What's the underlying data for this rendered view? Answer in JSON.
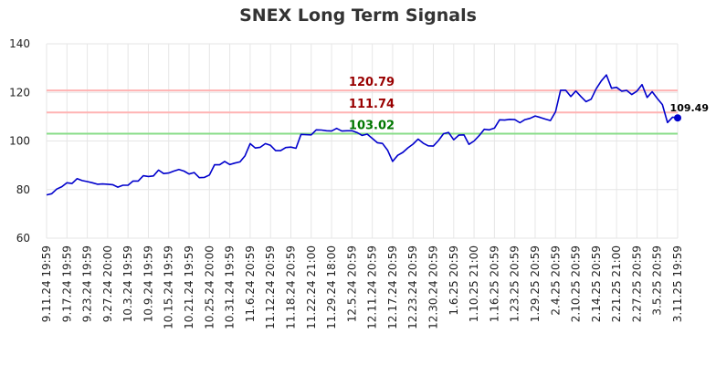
{
  "chart_data": {
    "type": "line",
    "title": "SNEX Long Term Signals",
    "xlabel": "",
    "ylabel": "",
    "ylim": [
      60,
      140
    ],
    "yticks": [
      60,
      80,
      100,
      120,
      140
    ],
    "grid": true,
    "x_tick_labels": [
      "9.11.24 19:59",
      "9.17.24 19:59",
      "9.23.24 19:59",
      "9.27.24 20:00",
      "10.3.24 19:59",
      "10.9.24 19:59",
      "10.15.24 19:59",
      "10.21.24 19:59",
      "10.25.24 20:00",
      "10.31.24 19:59",
      "11.6.24 20:59",
      "11.12.24 20:59",
      "11.18.24 20:59",
      "11.22.24 21:00",
      "11.29.24 18:00",
      "12.5.24 20:59",
      "12.11.24 20:59",
      "12.17.24 20:59",
      "12.23.24 20:59",
      "12.30.24 20:59",
      "1.6.25 20:59",
      "1.10.25 21:00",
      "1.16.25 20:59",
      "1.23.25 20:59",
      "1.29.25 20:59",
      "2.4.25 20:59",
      "2.10.25 20:59",
      "2.14.25 20:59",
      "2.21.25 21:00",
      "2.27.25 20:59",
      "3.5.25 20:59",
      "3.11.25 19:59"
    ],
    "series": [
      {
        "color": "#0000cc",
        "values": [
          77.8,
          78.3,
          80.2,
          81.2,
          82.8,
          82.5,
          84.5,
          83.7,
          83.3,
          82.8,
          82.2,
          82.3,
          82.2,
          82.0,
          81.0,
          81.8,
          81.8,
          83.5,
          83.5,
          85.7,
          85.4,
          85.6,
          88.0,
          86.6,
          86.8,
          87.6,
          88.3,
          87.6,
          86.4,
          87.0,
          84.9,
          85.0,
          86.0,
          90.2,
          90.2,
          91.6,
          90.3,
          90.9,
          91.4,
          93.9,
          98.9,
          97.1,
          97.4,
          98.9,
          98.2,
          96.0,
          96.0,
          97.3,
          97.5,
          97.0,
          102.7,
          102.6,
          102.5,
          104.6,
          104.5,
          104.2,
          104.1,
          105.2,
          104.1,
          104.2,
          104.2,
          103.5,
          102.3,
          102.8,
          101.1,
          99.3,
          99.0,
          96.2,
          91.6,
          94.1,
          95.3,
          97.2,
          98.7,
          100.8,
          99.1,
          98.0,
          97.9,
          100.2,
          103.0,
          103.5,
          100.5,
          102.4,
          102.5,
          98.6,
          100.0,
          102.2,
          104.8,
          104.6,
          105.3,
          108.7,
          108.6,
          108.9,
          108.8,
          107.5,
          108.8,
          109.3,
          110.3,
          109.7,
          109.0,
          108.4,
          112.0,
          120.9,
          120.9,
          118.3,
          120.6,
          118.3,
          116.2,
          117.2,
          121.5,
          124.7,
          127.2,
          121.7,
          122.1,
          120.5,
          120.8,
          119.1,
          120.5,
          123.2,
          117.9,
          120.3,
          117.5,
          115.0,
          107.6,
          109.8,
          109.49
        ]
      }
    ],
    "levels": [
      {
        "label": "120.79",
        "value": 120.79,
        "line_color": "#ffb3b3",
        "text_color": "#990000"
      },
      {
        "label": "111.74",
        "value": 111.74,
        "line_color": "#ffb3b3",
        "text_color": "#990000"
      },
      {
        "label": "103.02",
        "value": 103.02,
        "line_color": "#88dd88",
        "text_color": "#007700"
      }
    ],
    "last_value_label": "109.49"
  }
}
